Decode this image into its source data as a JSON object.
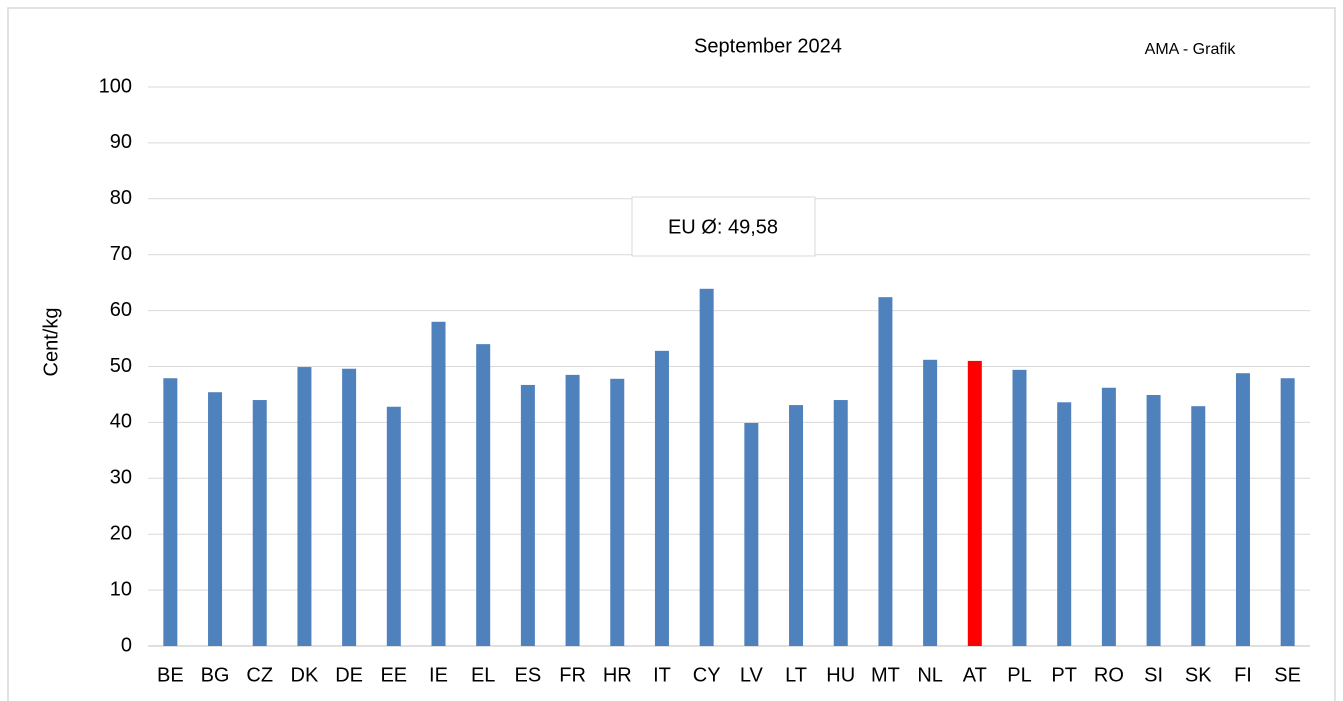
{
  "chart_data": {
    "type": "bar",
    "title": "September 2024",
    "source": "AMA - Grafik",
    "y_label": "Cent/kg",
    "annotation": "EU Ø: 49,58",
    "categories": [
      "BE",
      "BG",
      "CZ",
      "DK",
      "DE",
      "EE",
      "IE",
      "EL",
      "ES",
      "FR",
      "HR",
      "IT",
      "CY",
      "LV",
      "LT",
      "HU",
      "MT",
      "NL",
      "AT",
      "PL",
      "PT",
      "RO",
      "SI",
      "SK",
      "FI",
      "SE"
    ],
    "values": [
      47.9,
      45.4,
      44,
      49.9,
      49.6,
      42.8,
      58,
      54,
      46.7,
      48.5,
      47.8,
      52.8,
      63.9,
      39.9,
      43.1,
      44,
      62.4,
      51.2,
      51,
      49.4,
      43.6,
      46.2,
      44.9,
      42.9,
      48.8,
      47.9
    ],
    "colors": [
      "#4f81bd",
      "#4f81bd",
      "#4f81bd",
      "#4f81bd",
      "#4f81bd",
      "#4f81bd",
      "#4f81bd",
      "#4f81bd",
      "#4f81bd",
      "#4f81bd",
      "#4f81bd",
      "#4f81bd",
      "#4f81bd",
      "#4f81bd",
      "#4f81bd",
      "#4f81bd",
      "#4f81bd",
      "#4f81bd",
      "#ff0000",
      "#4f81bd",
      "#4f81bd",
      "#4f81bd",
      "#4f81bd",
      "#4f81bd",
      "#4f81bd",
      "#4f81bd"
    ],
    "ylim": [
      0,
      100
    ],
    "yticks": [
      0,
      10,
      20,
      30,
      40,
      50,
      60,
      70,
      80,
      90,
      100
    ],
    "grid": true
  }
}
